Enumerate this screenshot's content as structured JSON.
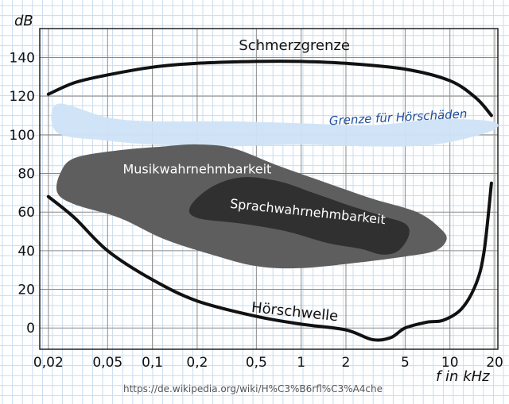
{
  "chart_data": {
    "type": "area",
    "xlabel": "f in kHz",
    "ylabel": "dB",
    "x_scale": "log",
    "xlim": [
      0.0175,
      21
    ],
    "ylim": [
      -11,
      155
    ],
    "x_ticks": [
      {
        "value": 0.02,
        "label": "0,02"
      },
      {
        "value": 0.05,
        "label": "0,05"
      },
      {
        "value": 0.1,
        "label": "0,1"
      },
      {
        "value": 0.2,
        "label": "0,2"
      },
      {
        "value": 0.5,
        "label": "0,5"
      },
      {
        "value": 1,
        "label": "1"
      },
      {
        "value": 2,
        "label": "2"
      },
      {
        "value": 5,
        "label": "5"
      },
      {
        "value": 10,
        "label": "10"
      },
      {
        "value": 20,
        "label": "20"
      }
    ],
    "y_ticks": [
      {
        "value": 0,
        "label": "0"
      },
      {
        "value": 20,
        "label": "20"
      },
      {
        "value": 40,
        "label": "40"
      },
      {
        "value": 60,
        "label": "60"
      },
      {
        "value": 80,
        "label": "80"
      },
      {
        "value": 100,
        "label": "100"
      },
      {
        "value": 120,
        "label": "120"
      },
      {
        "value": 140,
        "label": "140"
      }
    ],
    "grid": true,
    "series": [
      {
        "name": "Schmerzgrenze",
        "kind": "line",
        "color": "#111111",
        "points": [
          [
            0.02,
            121
          ],
          [
            0.03,
            127
          ],
          [
            0.05,
            131
          ],
          [
            0.1,
            135
          ],
          [
            0.2,
            137
          ],
          [
            0.5,
            138
          ],
          [
            1,
            138
          ],
          [
            2,
            137
          ],
          [
            5,
            134
          ],
          [
            10,
            128
          ],
          [
            15,
            119
          ],
          [
            19,
            110
          ]
        ]
      },
      {
        "name": "Hörschwelle",
        "kind": "line",
        "color": "#111111",
        "points": [
          [
            0.02,
            68
          ],
          [
            0.03,
            57
          ],
          [
            0.05,
            40
          ],
          [
            0.1,
            25
          ],
          [
            0.2,
            14
          ],
          [
            0.5,
            6
          ],
          [
            1,
            2
          ],
          [
            2,
            -1
          ],
          [
            3,
            -6
          ],
          [
            4,
            -5
          ],
          [
            5,
            0
          ],
          [
            7,
            3
          ],
          [
            9,
            4
          ],
          [
            12,
            10
          ],
          [
            15,
            23
          ],
          [
            17,
            40
          ],
          [
            19,
            75
          ]
        ]
      },
      {
        "name": "Grenze für Hörschäden",
        "kind": "band",
        "color": "#cfe3f7",
        "upper": [
          [
            0.023,
            116
          ],
          [
            0.05,
            109
          ],
          [
            0.1,
            107
          ],
          [
            0.3,
            107
          ],
          [
            1,
            106
          ],
          [
            3,
            105
          ],
          [
            8,
            108
          ],
          [
            19,
            107
          ]
        ],
        "lower": [
          [
            0.023,
            101
          ],
          [
            0.05,
            97
          ],
          [
            0.1,
            95
          ],
          [
            0.3,
            94
          ],
          [
            1,
            95
          ],
          [
            3,
            94
          ],
          [
            8,
            95
          ],
          [
            19,
            102
          ]
        ]
      },
      {
        "name": "Musikwahrnehmbarkeit",
        "kind": "region",
        "color": "#5e5e5e",
        "outline": [
          [
            0.03,
            88
          ],
          [
            0.06,
            92
          ],
          [
            0.12,
            94
          ],
          [
            0.2,
            95
          ],
          [
            0.35,
            93
          ],
          [
            0.7,
            84
          ],
          [
            1.5,
            75
          ],
          [
            3,
            67
          ],
          [
            6,
            60
          ],
          [
            8.5,
            52
          ],
          [
            9.5,
            46
          ],
          [
            8,
            40
          ],
          [
            5,
            37
          ],
          [
            2.5,
            34
          ],
          [
            1,
            31
          ],
          [
            0.5,
            32
          ],
          [
            0.25,
            38
          ],
          [
            0.12,
            46
          ],
          [
            0.06,
            57
          ],
          [
            0.03,
            64
          ],
          [
            0.023,
            70
          ],
          [
            0.024,
            80
          ]
        ]
      },
      {
        "name": "Sprachwahrnehmbarkeit",
        "kind": "region",
        "color": "#303030",
        "outline": [
          [
            0.18,
            63
          ],
          [
            0.25,
            73
          ],
          [
            0.4,
            78
          ],
          [
            0.7,
            76
          ],
          [
            1.2,
            70
          ],
          [
            2,
            64
          ],
          [
            3.5,
            58
          ],
          [
            5,
            54
          ],
          [
            5.3,
            48
          ],
          [
            4.5,
            40
          ],
          [
            3.5,
            38
          ],
          [
            2.5,
            41
          ],
          [
            1.5,
            44
          ],
          [
            0.8,
            50
          ],
          [
            0.4,
            54
          ],
          [
            0.2,
            57
          ]
        ]
      }
    ],
    "annotations": [
      {
        "text": "Schmerzgrenze",
        "x": 0.9,
        "y": 144,
        "style": "curve"
      },
      {
        "text": "Grenze für Hörschäden",
        "x": 4.5,
        "y": 107,
        "style": "hand"
      },
      {
        "text": "Musikwahrnehmbarkeit",
        "x": 0.2,
        "y": 80,
        "style": "area"
      },
      {
        "text": "Sprachwahrnehmbarkeit",
        "x": 1.1,
        "y": 58,
        "style": "area"
      },
      {
        "text": "Hörschwelle",
        "x": 0.9,
        "y": 6,
        "style": "curve"
      }
    ],
    "source_text": "https://de.wikipedia.org/wiki/H%C3%B6rfl%C3%A4che"
  },
  "colors": {
    "minor_grid": "#c9dcee",
    "major_grid": "#8a8a8a",
    "axis": "#222222"
  }
}
